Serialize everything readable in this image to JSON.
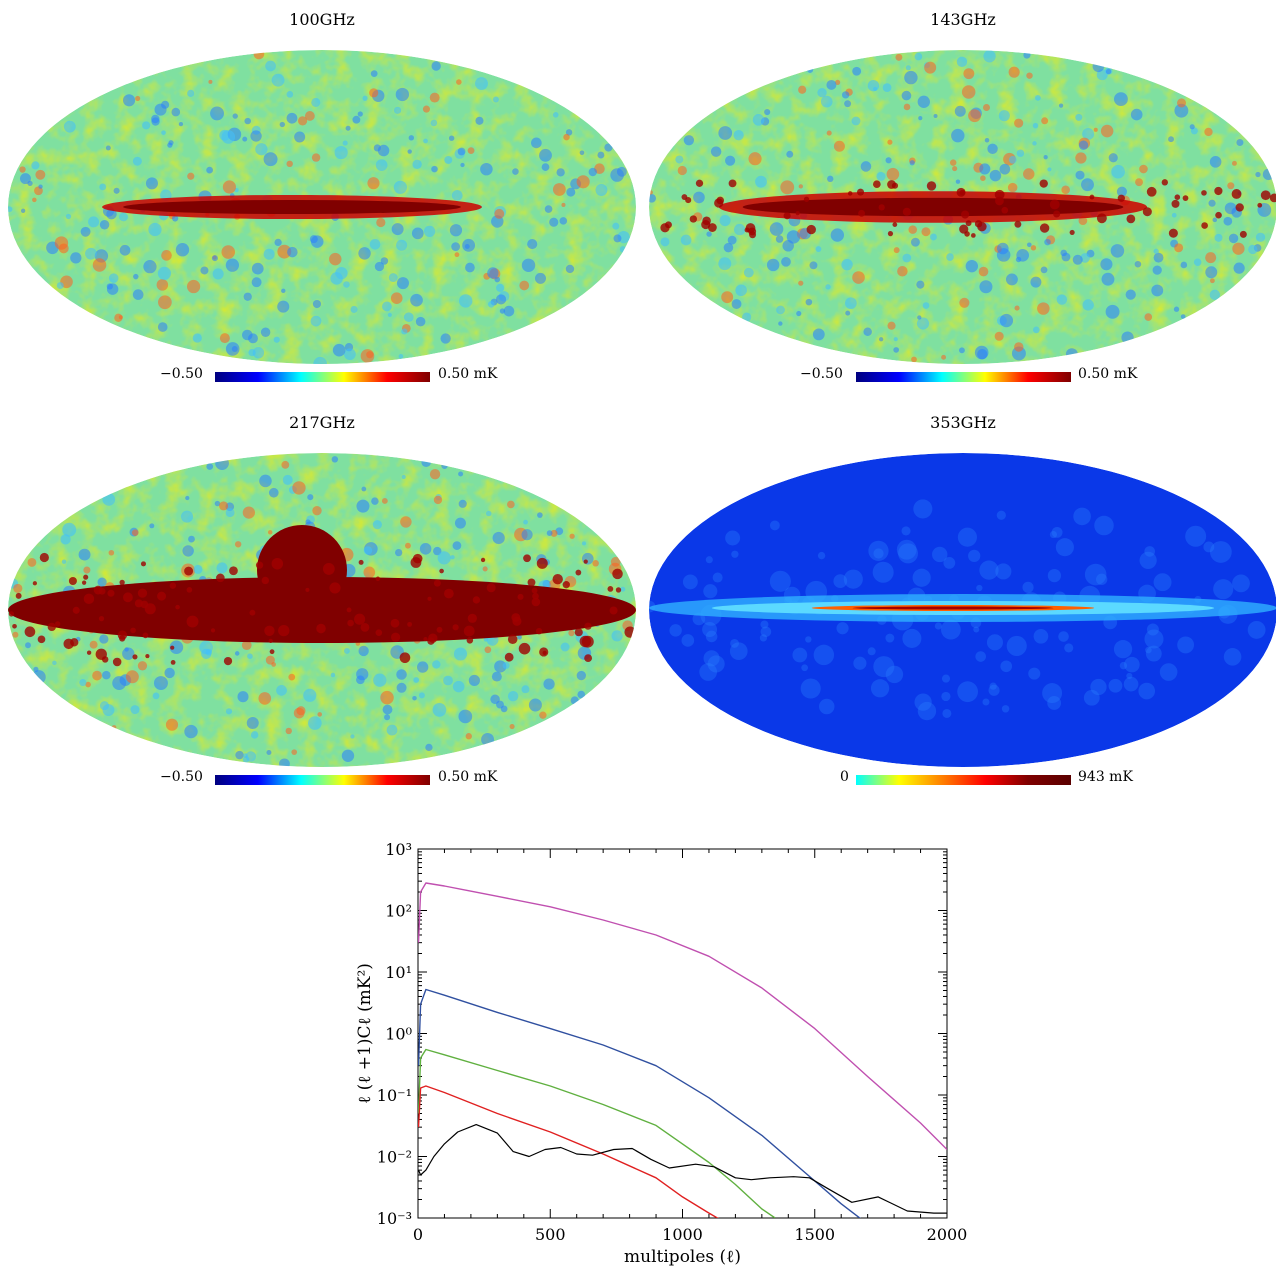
{
  "maps": [
    {
      "title": "100GHz",
      "cb_min": "−0.50",
      "cb_max": "0.50 mK",
      "scheme": "cmb",
      "band": 0.35
    },
    {
      "title": "143GHz",
      "cb_min": "−0.50",
      "cb_max": "0.50 mK",
      "scheme": "cmb",
      "band": 0.55
    },
    {
      "title": "217GHz",
      "cb_min": "−0.50",
      "cb_max": "0.50 mK",
      "scheme": "cmb",
      "band": 1.0
    },
    {
      "title": "353GHz",
      "cb_min": "0",
      "cb_max": "943 mK",
      "scheme": "dust",
      "band": 1.0
    }
  ],
  "colors": {
    "cmb_scale": [
      "#00007f",
      "#0000ff",
      "#00ffff",
      "#ffff00",
      "#ff0000",
      "#7f0000"
    ],
    "dust_scale": [
      "#00ffff",
      "#ffff00",
      "#ff8000",
      "#ff0000",
      "#7f0000",
      "#5a0000"
    ]
  },
  "chart_data": {
    "type": "line",
    "xlabel": "multipoles (ℓ)",
    "ylabel": "ℓ (ℓ +1)Cℓ (mK²)",
    "xlim": [
      0,
      2000
    ],
    "ylim": [
      0.001,
      1000
    ],
    "yscale": "log",
    "xticks": [
      "0",
      "500",
      "1000",
      "1500",
      "2000"
    ],
    "yticks": [
      "10⁻³",
      "10⁻²",
      "10⁻¹",
      "10⁰",
      "10¹",
      "10²",
      "10³"
    ],
    "series": [
      {
        "color": "#c050b0",
        "x": [
          2,
          10,
          30,
          100,
          300,
          500,
          700,
          900,
          1100,
          1300,
          1500,
          1700,
          1900,
          2000
        ],
        "y": [
          30,
          200,
          280,
          250,
          170,
          115,
          70,
          40,
          18,
          5.5,
          1.2,
          0.2,
          0.035,
          0.013
        ]
      },
      {
        "color": "#3050a0",
        "x": [
          2,
          10,
          30,
          100,
          300,
          500,
          700,
          900,
          1100,
          1300,
          1500,
          1600,
          1700
        ],
        "y": [
          0.3,
          3,
          5.2,
          4.2,
          2.2,
          1.2,
          0.65,
          0.3,
          0.09,
          0.022,
          0.004,
          0.0017,
          0.0008
        ]
      },
      {
        "color": "#60b040",
        "x": [
          2,
          10,
          30,
          100,
          300,
          500,
          700,
          900,
          1100,
          1200,
          1300,
          1350
        ],
        "y": [
          0.05,
          0.4,
          0.55,
          0.45,
          0.25,
          0.14,
          0.07,
          0.032,
          0.008,
          0.0035,
          0.0014,
          0.001
        ]
      },
      {
        "color": "#e02020",
        "x": [
          2,
          10,
          30,
          100,
          300,
          500,
          700,
          900,
          1000,
          1100,
          1150
        ],
        "y": [
          0.03,
          0.13,
          0.14,
          0.11,
          0.05,
          0.025,
          0.011,
          0.0045,
          0.0022,
          0.0012,
          0.0009
        ]
      },
      {
        "color": "#000000",
        "x": [
          2,
          10,
          30,
          60,
          100,
          150,
          220,
          300,
          360,
          420,
          480,
          540,
          600,
          660,
          740,
          810,
          880,
          950,
          1050,
          1120,
          1200,
          1260,
          1330,
          1420,
          1480,
          1550,
          1640,
          1740,
          1850,
          1950,
          2000
        ],
        "y": [
          0.006,
          0.005,
          0.006,
          0.01,
          0.016,
          0.025,
          0.033,
          0.024,
          0.012,
          0.01,
          0.013,
          0.014,
          0.011,
          0.0105,
          0.013,
          0.0135,
          0.009,
          0.0065,
          0.0075,
          0.0068,
          0.0045,
          0.0042,
          0.0045,
          0.0047,
          0.0045,
          0.003,
          0.0018,
          0.0022,
          0.0013,
          0.0012,
          0.0012
        ]
      }
    ]
  }
}
